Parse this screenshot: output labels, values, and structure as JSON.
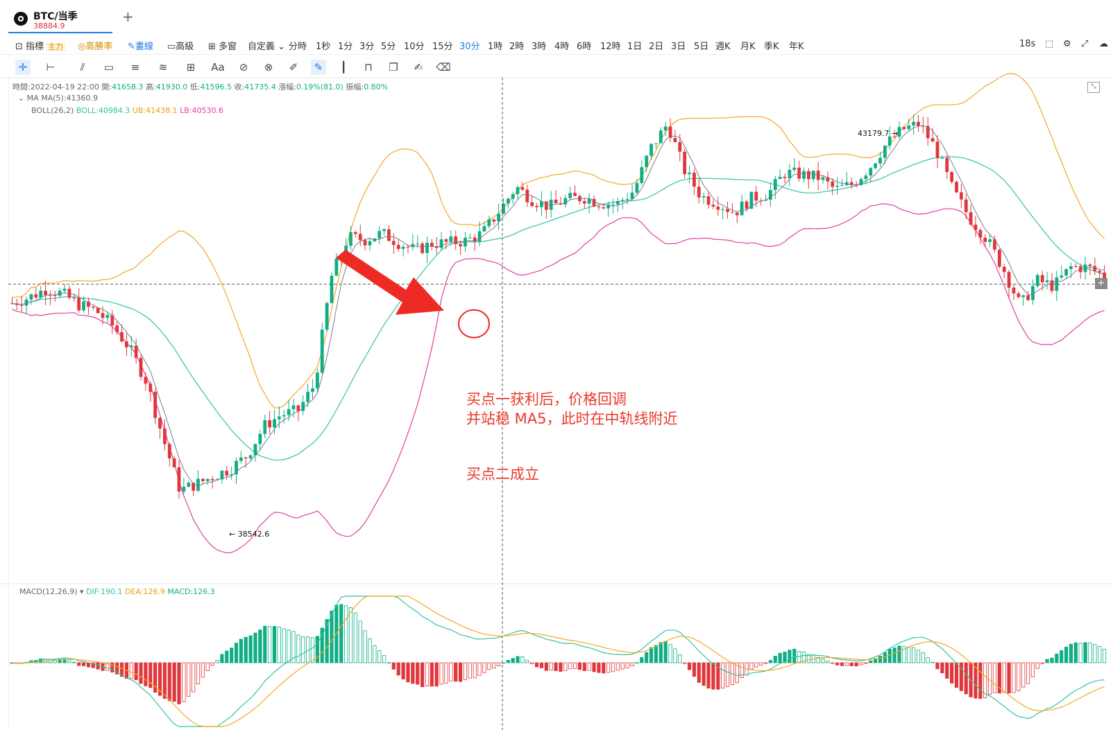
{
  "tab": {
    "title": "BTC/当季",
    "price": "38884.9",
    "add_icon": "plus-icon"
  },
  "toolbar": {
    "indicator": "指標",
    "indicator_badge": "主力",
    "win_rate": "高勝率",
    "draw": "畫線",
    "advanced": "高級",
    "multi_window": "多窗",
    "custom": "自定義",
    "intervals": [
      "分時",
      "1秒",
      "1分",
      "3分",
      "5分",
      "10分",
      "15分",
      "30分",
      "1時",
      "2時",
      "3時",
      "4時",
      "6時",
      "12時",
      "1日",
      "2日",
      "3日",
      "5日",
      "週K",
      "月K",
      "季K",
      "年K"
    ],
    "active_interval": "30分",
    "countdown": "18s"
  },
  "legend": {
    "time_label": "時間:",
    "time": "2022-04-19 22:00",
    "open_label": "開:",
    "open": "41658.3",
    "high_label": "高:",
    "high": "41930.0",
    "low_label": "低:",
    "low": "41596.5",
    "close_label": "收:",
    "close": "41735.4",
    "change_label": "漲幅:",
    "change": "0.19%(81.0)",
    "amp_label": "振幅:",
    "amp": "0.80%",
    "ma_name": "MA",
    "ma5": "MA(5):41360.9",
    "boll_name": "BOLL(26,2)",
    "boll": "BOLL:40984.3",
    "ub": "UB:41438.1",
    "lb": "LB:40530.6"
  },
  "price_labels": {
    "high": "43179.7",
    "low": "38542.6"
  },
  "annotations": {
    "line1": "买点一获利后，价格回调",
    "line2": "并站稳 MA5，此时在中轨线附近",
    "line3": "买点二成立"
  },
  "macd_legend": {
    "name": "MACD(12,26,9)",
    "dif": "DIF:190.1",
    "dea": "DEA:126.9",
    "macd": "MACD:126.3"
  },
  "colors": {
    "up": "#0fae84",
    "down": "#e0373c",
    "ub": "#f5a623",
    "mid": "#33c2a2",
    "lb": "#e03fa0",
    "ma5": "#7a7a8c",
    "arrow": "#ee2a24"
  },
  "chart_data": {
    "type": "candlestick",
    "visible_high": 43179.7,
    "visible_low": 38542.6,
    "close_path": [
      41060,
      41120,
      41210,
      41160,
      41040,
      40980,
      40820,
      40580,
      40230,
      39620,
      39080,
      39150,
      39230,
      39310,
      39450,
      39760,
      39880,
      39920,
      40200,
      41340,
      41760,
      41730,
      41800,
      41700,
      41620,
      41690,
      41700,
      41720,
      41800,
      42040,
      42290,
      42150,
      42080,
      42160,
      42180,
      42120,
      42110,
      42250,
      42700,
      42960,
      42470,
      42190,
      42120,
      42020,
      42170,
      42220,
      42440,
      42420,
      42390,
      42260,
      42320,
      42490,
      42740,
      42900,
      42960,
      42680,
      42250,
      41960,
      41740,
      41420,
      41030,
      41300,
      41240,
      41440,
      41440,
      41350
    ]
  }
}
